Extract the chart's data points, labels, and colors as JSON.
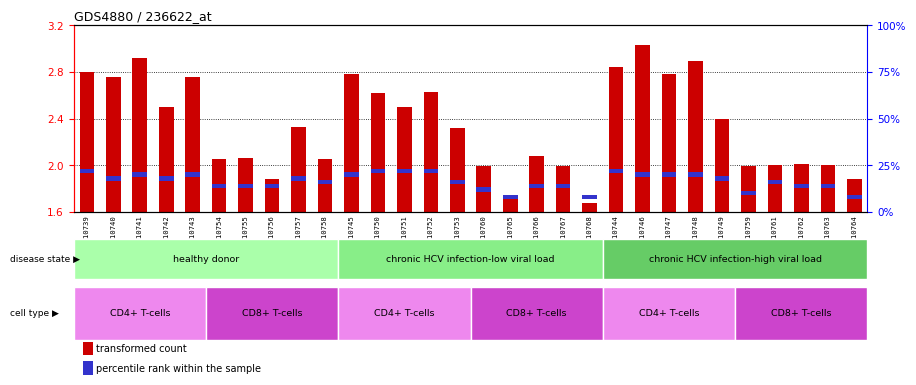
{
  "title": "GDS4880 / 236622_at",
  "samples": [
    "GSM1210739",
    "GSM1210740",
    "GSM1210741",
    "GSM1210742",
    "GSM1210743",
    "GSM1210754",
    "GSM1210755",
    "GSM1210756",
    "GSM1210757",
    "GSM1210758",
    "GSM1210745",
    "GSM1210750",
    "GSM1210751",
    "GSM1210752",
    "GSM1210753",
    "GSM1210760",
    "GSM1210765",
    "GSM1210766",
    "GSM1210767",
    "GSM1210768",
    "GSM1210744",
    "GSM1210746",
    "GSM1210747",
    "GSM1210748",
    "GSM1210749",
    "GSM1210759",
    "GSM1210761",
    "GSM1210762",
    "GSM1210763",
    "GSM1210764"
  ],
  "transformed_count": [
    2.8,
    2.76,
    2.92,
    2.5,
    2.76,
    2.05,
    2.06,
    1.88,
    2.33,
    2.05,
    2.78,
    2.62,
    2.5,
    2.63,
    2.32,
    1.99,
    1.72,
    2.08,
    1.99,
    1.68,
    2.84,
    3.03,
    2.78,
    2.89,
    2.4,
    1.99,
    2.0,
    2.01,
    2.0,
    1.88
  ],
  "percentile_rank": [
    22,
    18,
    20,
    18,
    20,
    14,
    14,
    14,
    18,
    16,
    20,
    22,
    22,
    22,
    16,
    12,
    8,
    14,
    14,
    8,
    22,
    20,
    20,
    20,
    18,
    10,
    16,
    14,
    14,
    8
  ],
  "ylim_left": [
    1.6,
    3.2
  ],
  "ylim_right": [
    0,
    100
  ],
  "yticks_left": [
    1.6,
    2.0,
    2.4,
    2.8,
    3.2
  ],
  "yticks_right": [
    0,
    25,
    50,
    75,
    100
  ],
  "bar_color": "#cc0000",
  "percentile_color": "#3333cc",
  "plot_bg": "#ffffff",
  "xtick_bg": "#d0d0d0",
  "disease_state_colors": [
    "#aaffaa",
    "#88ee88",
    "#66cc66"
  ],
  "disease_states": [
    {
      "label": "healthy donor",
      "start": 0,
      "end": 10
    },
    {
      "label": "chronic HCV infection-low viral load",
      "start": 10,
      "end": 20
    },
    {
      "label": "chronic HCV infection-high viral load",
      "start": 20,
      "end": 30
    }
  ],
  "cell_type_colors": [
    "#ee88ee",
    "#cc44cc"
  ],
  "cell_types": [
    {
      "label": "CD4+ T-cells",
      "start": 0,
      "end": 5
    },
    {
      "label": "CD8+ T-cells",
      "start": 5,
      "end": 10
    },
    {
      "label": "CD4+ T-cells",
      "start": 10,
      "end": 15
    },
    {
      "label": "CD8+ T-cells",
      "start": 15,
      "end": 20
    },
    {
      "label": "CD4+ T-cells",
      "start": 20,
      "end": 25
    },
    {
      "label": "CD8+ T-cells",
      "start": 25,
      "end": 30
    }
  ]
}
